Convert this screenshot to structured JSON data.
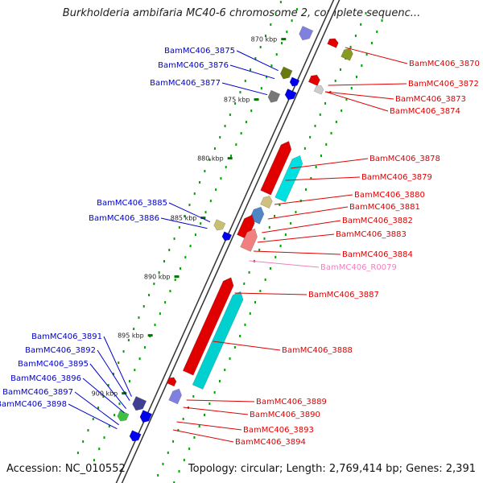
{
  "title": "Burkholderia ambifaria MC40-6 chromosome 2, complete sequenc...",
  "footer": {
    "accession": "Accession: NC_010552",
    "topology": "Topology: circular; Length: 2,769,414 bp; Genes: 2,391"
  },
  "colors": {
    "label_red": "#e00000",
    "label_blue": "#0000cc",
    "label_pink": "#f080c0",
    "backbone": "#999999",
    "dots": "#00a000",
    "tick": "#007700"
  },
  "ticks": [
    "870 kbp",
    "875 kbp",
    "880 kbp",
    "885 kbp",
    "890 kbp",
    "895 kbp",
    "900 kbp"
  ],
  "genes_forward": [
    "BamMC406_3870",
    "BamMC406_3872",
    "BamMC406_3873",
    "BamMC406_3874",
    "BamMC406_3878",
    "BamMC406_3879",
    "BamMC406_3880",
    "BamMC406_3881",
    "BamMC406_3882",
    "BamMC406_3883",
    "BamMC406_3884",
    "BamMC406_R0079",
    "BamMC406_3887",
    "BamMC406_3888",
    "BamMC406_3889",
    "BamMC406_3890",
    "BamMC406_3893",
    "BamMC406_3894"
  ],
  "genes_reverse": [
    "BamMC406_3875",
    "BamMC406_3876",
    "BamMC406_3877",
    "BamMC406_3885",
    "BamMC406_3886",
    "BamMC406_3891",
    "BamMC406_3892",
    "BamMC406_3895",
    "BamMC406_3896",
    "BamMC406_3897",
    "BamMC406_3898"
  ]
}
